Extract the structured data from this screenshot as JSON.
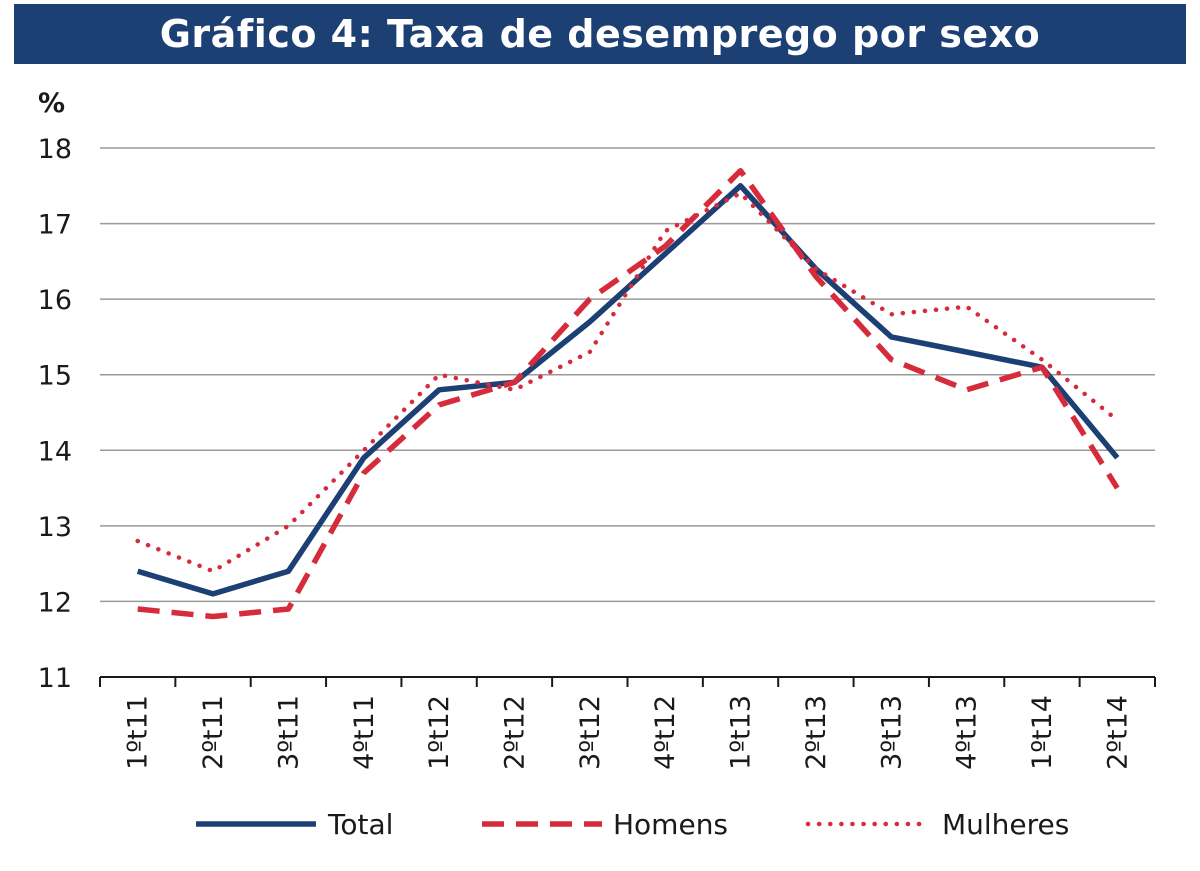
{
  "title": "Gráfico 4: Taxa de desemprego por sexo",
  "colors": {
    "header_bg": "#1c3f74",
    "total": "#1c3f74",
    "homens": "#d62b3a",
    "mulheres": "#d62b3a",
    "grid": "#9a9a9a"
  },
  "chart_data": {
    "type": "line",
    "title": "Gráfico 4: Taxa de desemprego por sexo",
    "ylabel": "%",
    "xlabel": "",
    "ylim": [
      11,
      18
    ],
    "yticks": [
      11,
      12,
      13,
      14,
      15,
      16,
      17,
      18
    ],
    "grid": true,
    "legend_position": "bottom",
    "categories": [
      "1ºt11",
      "2ºt11",
      "3ºt11",
      "4ºt11",
      "1ºt12",
      "2ºt12",
      "3ºt12",
      "4ºt12",
      "1ºt13",
      "2ºt13",
      "3ºt13",
      "4ºt13",
      "1ºt14",
      "2ºt14"
    ],
    "series": [
      {
        "name": "Total",
        "style": "solid",
        "color": "#1c3f74",
        "values": [
          12.4,
          12.1,
          12.4,
          13.9,
          14.8,
          14.9,
          15.7,
          16.6,
          17.5,
          16.4,
          15.5,
          15.3,
          15.1,
          13.9
        ]
      },
      {
        "name": "Homens",
        "style": "dashed",
        "color": "#d62b3a",
        "values": [
          11.9,
          11.8,
          11.9,
          13.7,
          14.6,
          14.9,
          16.0,
          16.7,
          17.7,
          16.3,
          15.2,
          14.8,
          15.1,
          13.5
        ]
      },
      {
        "name": "Mulheres",
        "style": "dotted",
        "color": "#d62b3a",
        "values": [
          12.8,
          12.4,
          13.0,
          14.0,
          15.0,
          14.8,
          15.3,
          16.9,
          17.4,
          16.4,
          15.8,
          15.9,
          15.2,
          14.4
        ]
      }
    ]
  }
}
